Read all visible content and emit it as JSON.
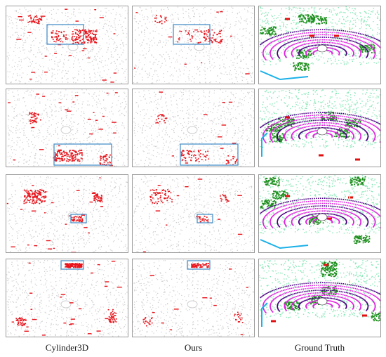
{
  "figure": {
    "columns": [
      {
        "id": "cylinder3d",
        "label": "Cylinder3D"
      },
      {
        "id": "ours",
        "label": "Ours"
      },
      {
        "id": "ground_truth",
        "label": "Ground Truth"
      }
    ],
    "rows": 4,
    "colors": {
      "background_points": "#cfcfcf",
      "error_points": "#e8141c",
      "highlight_box": "#4a90c8",
      "panel_border": "#9a9a9a",
      "gt_vegetation": "#1f8f1f",
      "gt_terrain": "#8de8b8",
      "gt_road": "#e020e0",
      "gt_sidewalk": "#4b0082",
      "gt_building": "#1ab0e8",
      "gt_car": "#e01010",
      "gt_pole": "#f0e040"
    }
  }
}
